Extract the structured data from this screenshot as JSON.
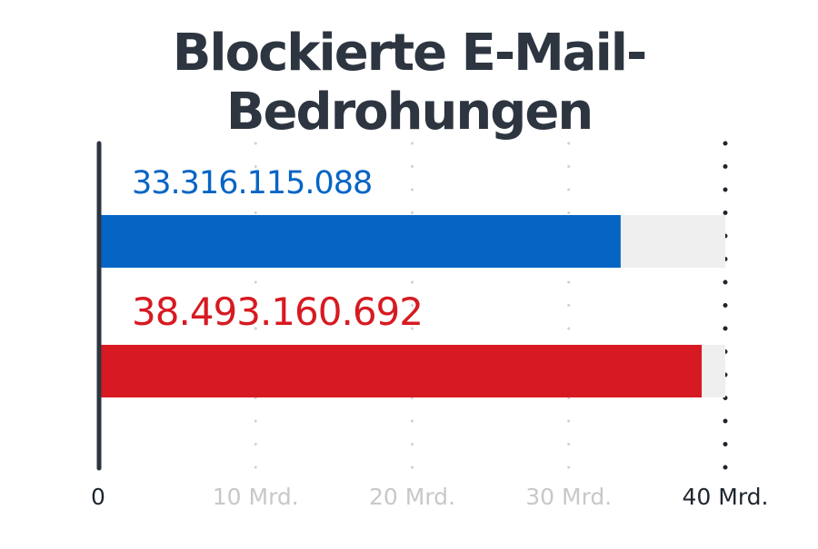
{
  "chart_data": {
    "type": "bar",
    "orientation": "horizontal",
    "title": "Blockierte E-Mail-Bedrohungen",
    "values": [
      33316115088,
      38493160692
    ],
    "value_labels": [
      "33.316.115.088",
      "38.493.160.692"
    ],
    "xlim": [
      0,
      40000000000
    ],
    "xticks": [
      0,
      10000000000,
      20000000000,
      30000000000,
      40000000000
    ],
    "xtick_labels": [
      "0",
      "10 Mrd.",
      "20 Mrd.",
      "30 Mrd.",
      "40 Mrd."
    ],
    "grid": true,
    "colors": {
      "bars": [
        "#0665c4",
        "#d71a21"
      ],
      "track": "#efefef",
      "title": "#2d3540",
      "axis": "#2d3540",
      "grid_muted": "#d0d0d0",
      "tick_muted": "#c8c8c8",
      "tick_strong": "#1e252d"
    }
  }
}
